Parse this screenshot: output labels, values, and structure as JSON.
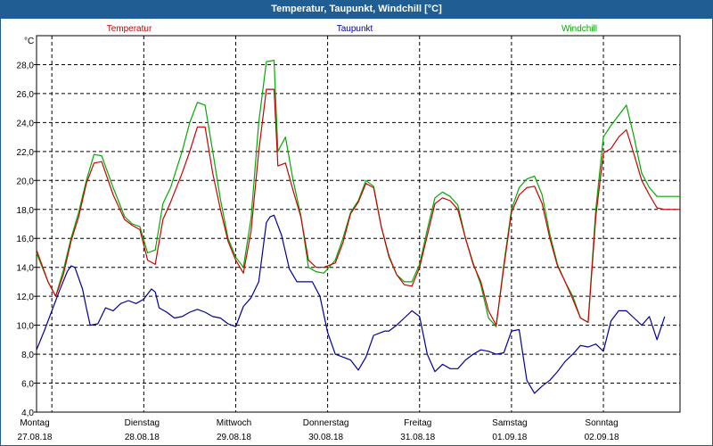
{
  "title": "Temperatur, Taupunkt, Windchill [°C]",
  "chart_data": {
    "type": "line",
    "unit": "°C",
    "ylim": [
      4.0,
      30.0
    ],
    "yticks": [
      "4,0",
      "6,0",
      "8,0",
      "10,0",
      "12,0",
      "14,0",
      "16,0",
      "18,0",
      "20,0",
      "22,0",
      "24,0",
      "26,0",
      "28,0"
    ],
    "xlim": [
      0,
      168
    ],
    "grid": true,
    "legend": "top",
    "days": [
      {
        "weekday": "Montag",
        "date": "27.08.18",
        "x": 0
      },
      {
        "weekday": "Dienstag",
        "date": "28.08.18",
        "x": 24
      },
      {
        "weekday": "Mittwoch",
        "date": "29.08.18",
        "x": 48
      },
      {
        "weekday": "Donnerstag",
        "date": "30.08.18",
        "x": 72
      },
      {
        "weekday": "Freitag",
        "date": "31.08.18",
        "x": 96
      },
      {
        "weekday": "Samstag",
        "date": "01.09.18",
        "x": 120
      },
      {
        "weekday": "Sonntag",
        "date": "02.09.18",
        "x": 144
      }
    ],
    "series": [
      {
        "name": "Temperatur",
        "color": "#cc0000",
        "x": [
          0,
          3,
          5,
          7,
          9,
          11,
          13,
          15,
          17,
          20,
          23,
          25,
          27,
          29,
          31,
          33,
          35,
          38,
          40,
          42,
          44,
          46,
          48,
          50,
          52,
          54,
          56,
          58,
          60,
          62,
          63,
          65,
          67,
          69,
          71,
          73,
          75,
          78,
          80,
          82,
          84,
          86,
          88,
          90,
          92,
          94,
          96,
          98,
          100,
          102,
          104,
          106,
          108,
          110,
          112,
          114,
          116,
          118,
          120,
          122,
          124,
          126,
          128,
          130,
          132,
          134,
          136,
          138,
          140,
          142,
          144,
          146,
          148,
          150,
          152,
          154,
          156,
          158,
          160,
          162,
          164,
          166,
          168
        ],
        "y": [
          15.2,
          13.0,
          12.0,
          13.5,
          15.8,
          17.5,
          19.8,
          21.2,
          21.3,
          19.0,
          17.3,
          16.9,
          16.6,
          14.5,
          14.2,
          17.3,
          18.5,
          20.5,
          22.0,
          23.7,
          23.7,
          20.5,
          18.0,
          15.8,
          14.5,
          13.6,
          16.5,
          22.0,
          26.3,
          26.3,
          21.0,
          21.2,
          19.3,
          17.5,
          14.5,
          14.0,
          14.0,
          14.3,
          15.7,
          17.7,
          18.5,
          19.8,
          19.5,
          16.8,
          14.8,
          13.5,
          12.8,
          12.7,
          14.0,
          16.2,
          18.4,
          18.8,
          18.6,
          18.0,
          16.0,
          14.2,
          13.0,
          11.0,
          10.0,
          14.0,
          17.8,
          19.0,
          19.5,
          19.6,
          18.4,
          16.0,
          14.1,
          13.0,
          11.8,
          10.5,
          10.2,
          17.5,
          21.9,
          22.2,
          23.0,
          23.5,
          21.8,
          20.0,
          19.0,
          18.1,
          18.0,
          18.0,
          18.0
        ]
      },
      {
        "name": "Taupunkt",
        "color": "#000099",
        "x": [
          0,
          2,
          4,
          6,
          8,
          9,
          10,
          12,
          13,
          14,
          16,
          18,
          20,
          22,
          24,
          26,
          28,
          30,
          31,
          32,
          34,
          36,
          38,
          40,
          42,
          44,
          46,
          48,
          50,
          52,
          54,
          56,
          58,
          60,
          61,
          62,
          64,
          66,
          68,
          70,
          72,
          74,
          76,
          78,
          80,
          82,
          84,
          86,
          88,
          90,
          91,
          92,
          94,
          96,
          98,
          100,
          102,
          104,
          106,
          108,
          110,
          112,
          114,
          116,
          118,
          120,
          122,
          124,
          126,
          128,
          130,
          132,
          134,
          136,
          138,
          140,
          142,
          144,
          146,
          148,
          150,
          152,
          154,
          156,
          158,
          160,
          162,
          164
        ],
        "y": [
          8.3,
          9.6,
          11.0,
          12.4,
          13.7,
          14.1,
          14.0,
          12.5,
          11.2,
          10.0,
          10.1,
          11.2,
          11.0,
          11.5,
          11.7,
          11.5,
          11.8,
          12.5,
          12.3,
          11.2,
          10.9,
          10.5,
          10.6,
          10.9,
          11.1,
          10.9,
          10.6,
          10.5,
          10.1,
          9.9,
          11.3,
          11.9,
          13.0,
          17.1,
          17.5,
          17.6,
          16.2,
          13.9,
          13.0,
          13.0,
          13.0,
          12.0,
          9.5,
          8.0,
          7.8,
          7.6,
          6.9,
          7.8,
          9.3,
          9.5,
          9.6,
          9.6,
          10.0,
          10.5,
          11.0,
          10.6,
          8.0,
          6.8,
          7.3,
          7.0,
          7.0,
          7.6,
          8.0,
          8.3,
          8.2,
          8.0,
          8.1,
          9.6,
          9.7,
          6.2,
          5.3,
          5.8,
          6.2,
          6.8,
          7.5,
          8.0,
          8.6,
          8.5,
          8.7,
          8.2,
          10.3,
          11.0,
          11.0,
          10.5,
          10.0,
          10.6,
          9.0,
          10.6
        ]
      },
      {
        "name": "Windchill",
        "color": "#00aa00",
        "x": [
          0,
          3,
          5,
          7,
          9,
          11,
          13,
          15,
          17,
          20,
          23,
          25,
          27,
          29,
          31,
          33,
          35,
          38,
          40,
          42,
          44,
          46,
          48,
          50,
          52,
          54,
          56,
          58,
          60,
          62,
          63,
          65,
          67,
          69,
          71,
          73,
          75,
          78,
          80,
          82,
          84,
          86,
          88,
          90,
          92,
          94,
          96,
          98,
          100,
          102,
          104,
          106,
          108,
          110,
          112,
          114,
          116,
          118,
          120,
          122,
          124,
          126,
          128,
          130,
          132,
          134,
          136,
          138,
          140,
          142,
          144,
          146,
          148,
          150,
          152,
          154,
          156,
          158,
          160,
          162,
          164,
          166,
          168
        ],
        "y": [
          15.0,
          13.0,
          12.0,
          13.8,
          16.0,
          17.8,
          20.0,
          21.8,
          21.7,
          19.5,
          17.5,
          17.0,
          16.8,
          15.0,
          15.2,
          18.4,
          19.5,
          22.0,
          24.0,
          25.4,
          25.2,
          22.0,
          18.7,
          16.0,
          14.7,
          14.0,
          17.4,
          24.0,
          28.2,
          28.3,
          22.0,
          23.0,
          20.0,
          17.6,
          14.0,
          13.7,
          13.6,
          14.5,
          16.0,
          17.8,
          18.6,
          20.0,
          19.6,
          16.8,
          14.7,
          13.5,
          13.0,
          13.0,
          14.2,
          16.6,
          18.8,
          19.2,
          18.9,
          18.3,
          16.0,
          14.3,
          12.8,
          10.5,
          9.9,
          14.2,
          18.0,
          19.5,
          20.1,
          20.3,
          19.0,
          16.3,
          14.2,
          13.0,
          12.0,
          10.5,
          10.2,
          18.0,
          23.0,
          23.8,
          24.5,
          25.2,
          23.0,
          20.5,
          19.5,
          18.9,
          18.9,
          18.9,
          18.9
        ]
      }
    ]
  }
}
